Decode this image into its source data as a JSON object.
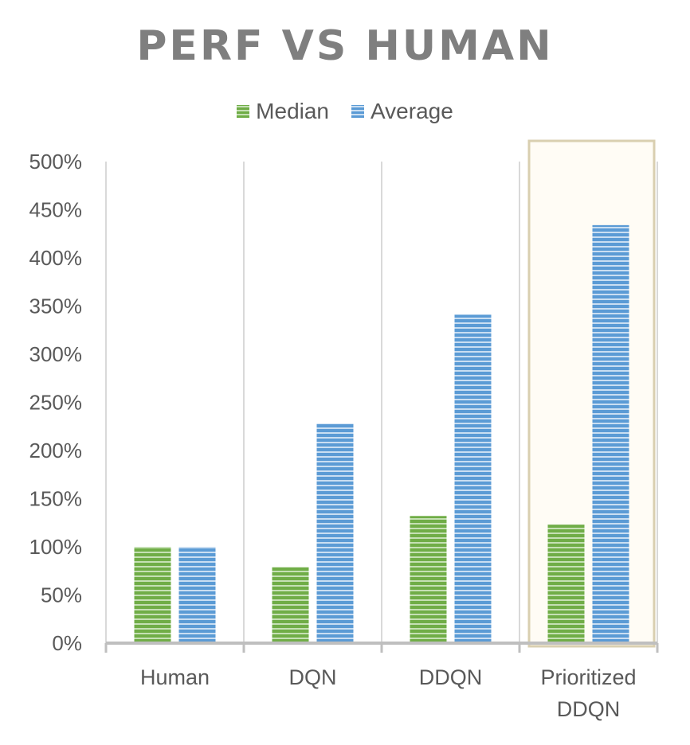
{
  "chart_data": {
    "type": "bar",
    "title": "PERF VS HUMAN",
    "categories": [
      [
        "Human"
      ],
      [
        "DQN"
      ],
      [
        "DDQN"
      ],
      [
        "Prioritized",
        "DDQN"
      ]
    ],
    "series": [
      {
        "name": "Median",
        "values": [
          100,
          79,
          132,
          123
        ],
        "color": "#70ad47"
      },
      {
        "name": "Average",
        "values": [
          100,
          228,
          341,
          434
        ],
        "color": "#5b9bd5"
      }
    ],
    "ylim": [
      0,
      500
    ],
    "yticks": [
      0,
      50,
      100,
      150,
      200,
      250,
      300,
      350,
      400,
      450,
      500
    ],
    "tick_suffix": "%",
    "grid": "vertical category separators",
    "legend_position": "top",
    "highlighted_category": "Prioritized DDQN",
    "highlight_color": "#d9cfb0"
  }
}
